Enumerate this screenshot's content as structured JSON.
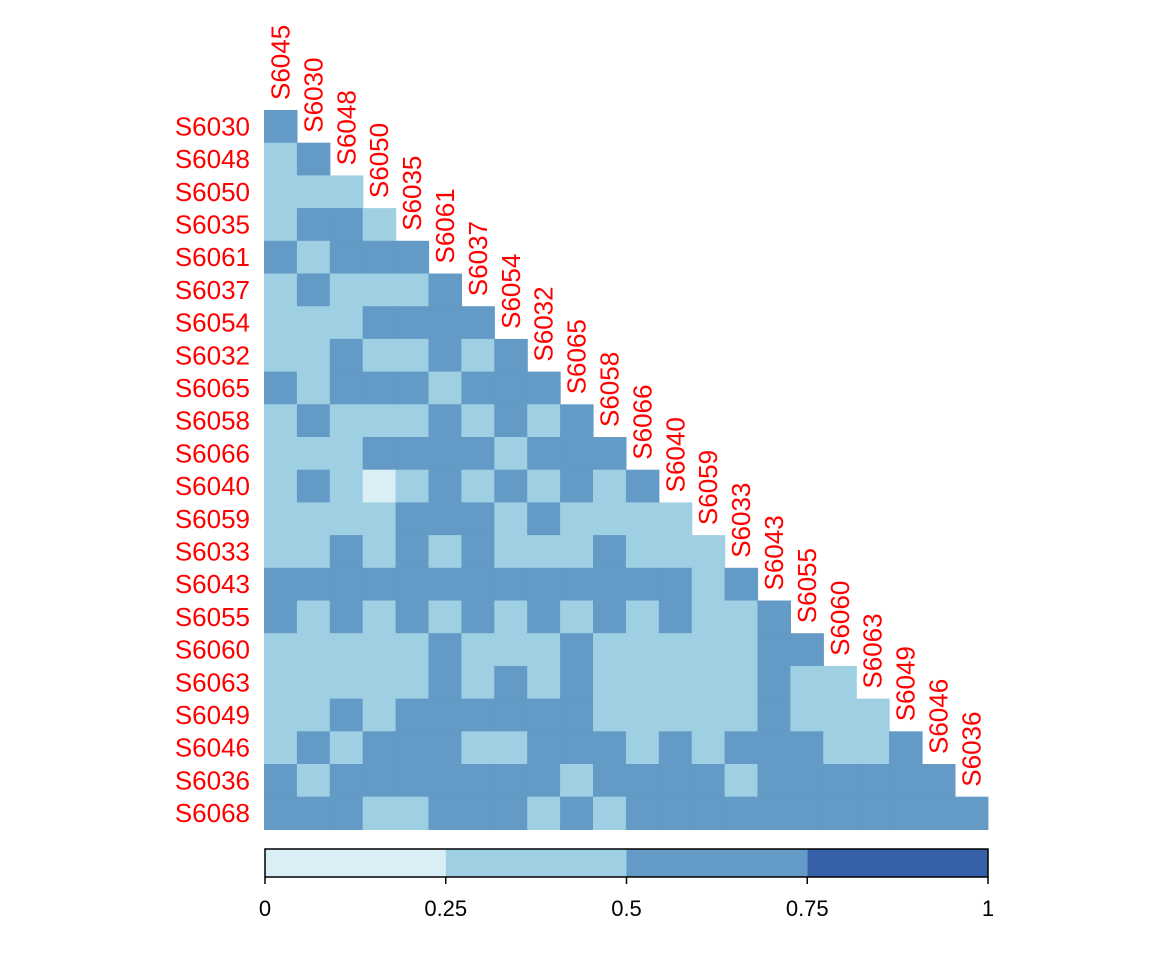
{
  "chart_data": {
    "type": "heatmap",
    "title": "",
    "xlabel": "",
    "ylabel": "",
    "columns": [
      "S6045",
      "S6030",
      "S6048",
      "S6050",
      "S6035",
      "S6061",
      "S6037",
      "S6054",
      "S6032",
      "S6065",
      "S6058",
      "S6066",
      "S6040",
      "S6059",
      "S6033",
      "S6043",
      "S6055",
      "S6060",
      "S6063",
      "S6049",
      "S6046",
      "S6036"
    ],
    "rows": [
      "S6030",
      "S6048",
      "S6050",
      "S6035",
      "S6061",
      "S6037",
      "S6054",
      "S6032",
      "S6065",
      "S6058",
      "S6066",
      "S6040",
      "S6059",
      "S6033",
      "S6043",
      "S6055",
      "S6060",
      "S6063",
      "S6049",
      "S6046",
      "S6036",
      "S6068"
    ],
    "bin_values": [
      [
        2
      ],
      [
        1,
        2
      ],
      [
        1,
        1,
        1
      ],
      [
        1,
        2,
        2,
        1
      ],
      [
        2,
        1,
        2,
        2,
        2
      ],
      [
        1,
        2,
        1,
        1,
        1,
        2
      ],
      [
        1,
        1,
        1,
        2,
        2,
        2,
        2
      ],
      [
        1,
        1,
        2,
        1,
        1,
        2,
        1,
        2
      ],
      [
        2,
        1,
        2,
        2,
        2,
        1,
        2,
        2,
        2
      ],
      [
        1,
        2,
        1,
        1,
        1,
        2,
        1,
        2,
        1,
        2
      ],
      [
        1,
        1,
        1,
        2,
        2,
        2,
        2,
        1,
        2,
        2,
        2
      ],
      [
        1,
        2,
        1,
        0,
        1,
        2,
        1,
        2,
        1,
        2,
        1,
        2
      ],
      [
        1,
        1,
        1,
        1,
        2,
        2,
        2,
        1,
        2,
        1,
        1,
        1,
        1
      ],
      [
        1,
        1,
        2,
        1,
        2,
        1,
        2,
        1,
        1,
        1,
        2,
        1,
        1,
        1
      ],
      [
        2,
        2,
        2,
        2,
        2,
        2,
        2,
        2,
        2,
        2,
        2,
        2,
        2,
        1,
        2
      ],
      [
        2,
        1,
        2,
        1,
        2,
        1,
        2,
        1,
        2,
        1,
        2,
        1,
        2,
        1,
        1,
        2
      ],
      [
        1,
        1,
        1,
        1,
        1,
        2,
        1,
        1,
        1,
        2,
        1,
        1,
        1,
        1,
        1,
        2,
        2
      ],
      [
        1,
        1,
        1,
        1,
        1,
        2,
        1,
        2,
        1,
        2,
        1,
        1,
        1,
        1,
        1,
        2,
        1,
        1
      ],
      [
        1,
        1,
        2,
        1,
        2,
        2,
        2,
        2,
        2,
        2,
        1,
        1,
        1,
        1,
        1,
        2,
        1,
        1,
        1
      ],
      [
        1,
        2,
        1,
        2,
        2,
        2,
        1,
        1,
        2,
        2,
        2,
        1,
        2,
        1,
        2,
        2,
        2,
        1,
        1,
        2
      ],
      [
        2,
        1,
        2,
        2,
        2,
        2,
        2,
        2,
        2,
        1,
        2,
        2,
        2,
        2,
        1,
        2,
        2,
        2,
        2,
        2,
        2
      ],
      [
        2,
        2,
        2,
        1,
        1,
        2,
        2,
        2,
        1,
        2,
        1,
        2,
        2,
        2,
        2,
        2,
        2,
        2,
        2,
        2,
        2,
        2
      ]
    ],
    "color_bins": [
      {
        "range": [
          0,
          0.25
        ],
        "color": "#daeff5"
      },
      {
        "range": [
          0.25,
          0.5
        ],
        "color": "#9ecfe3"
      },
      {
        "range": [
          0.5,
          0.75
        ],
        "color": "#639ac6"
      },
      {
        "range": [
          0.75,
          1
        ],
        "color": "#3661a8"
      }
    ],
    "colorbar": {
      "ticks": [
        0,
        0.25,
        0.5,
        0.75,
        1
      ],
      "tick_labels": [
        "0",
        "0.25",
        "0.5",
        "0.75",
        "1"
      ]
    },
    "label_color": "#ff0000"
  }
}
